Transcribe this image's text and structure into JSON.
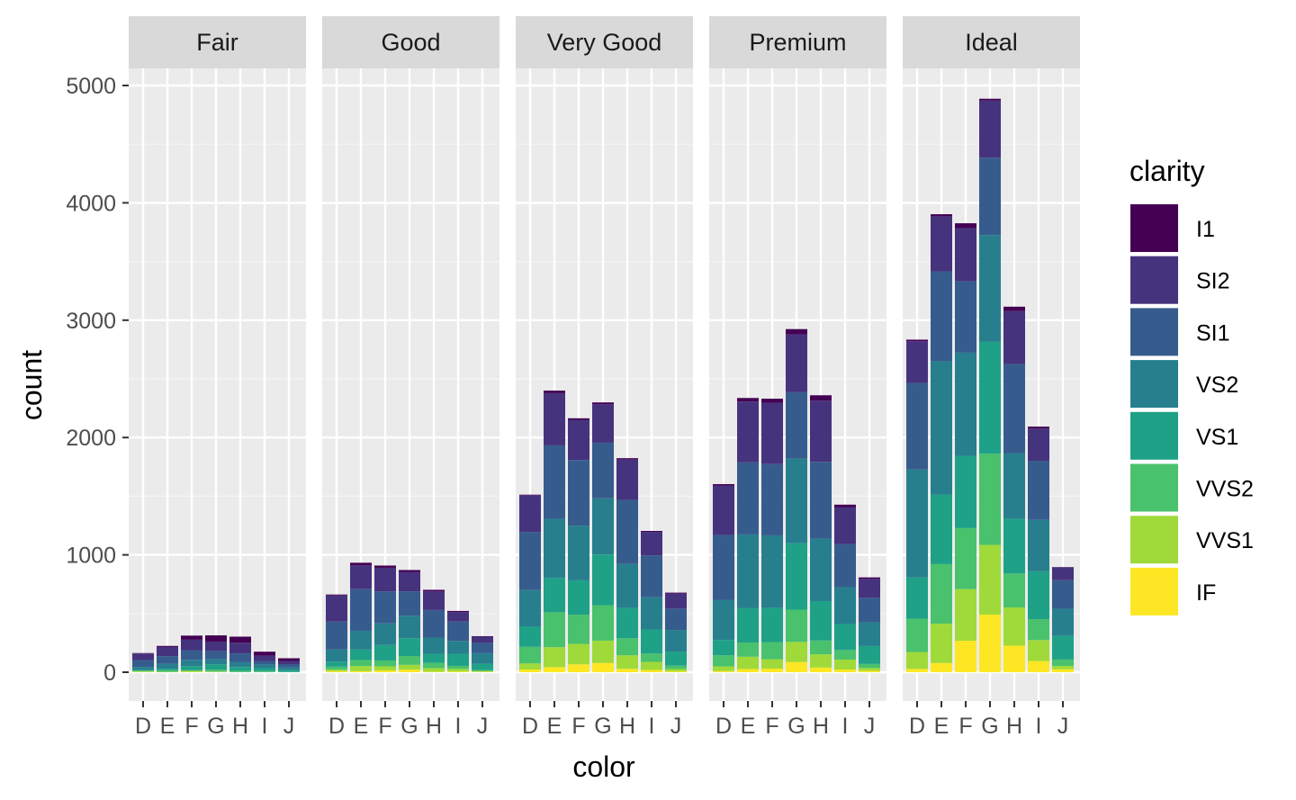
{
  "chart_data": {
    "type": "bar",
    "stacked": true,
    "facet_by": "cut",
    "xlabel": "color",
    "ylabel": "count",
    "ylim": [
      0,
      5300
    ],
    "y_ticks": [
      0,
      1000,
      2000,
      3000,
      4000,
      5000
    ],
    "grid": true,
    "legend_position": "right",
    "categories": [
      "D",
      "E",
      "F",
      "G",
      "H",
      "I",
      "J"
    ],
    "legend": {
      "title": "clarity",
      "items": [
        "I1",
        "SI2",
        "SI1",
        "VS2",
        "VS1",
        "VVS2",
        "VVS1",
        "IF"
      ],
      "colors": [
        "#440154",
        "#46337E",
        "#365C8D",
        "#277F8E",
        "#1FA187",
        "#4AC16D",
        "#9FDA3A",
        "#FDE725"
      ]
    },
    "stack_order": [
      "IF",
      "VVS1",
      "VVS2",
      "VS1",
      "VS2",
      "SI1",
      "SI2",
      "I1"
    ],
    "colors": {
      "I1": "#440154",
      "SI2": "#46337E",
      "SI1": "#365C8D",
      "VS2": "#277F8E",
      "VS1": "#1FA187",
      "VVS2": "#4AC16D",
      "VVS1": "#9FDA3A",
      "IF": "#FDE725"
    },
    "panels": [
      {
        "name": "Fair",
        "series": [
          {
            "name": "I1",
            "values": [
              4,
              9,
              35,
              53,
              52,
              34,
              23
            ]
          },
          {
            "name": "SI2",
            "values": [
              56,
              78,
              89,
              80,
              91,
              45,
              27
            ]
          },
          {
            "name": "SI1",
            "values": [
              58,
              65,
              83,
              69,
              75,
              30,
              28
            ]
          },
          {
            "name": "VS2",
            "values": [
              25,
              42,
              53,
              45,
              41,
              32,
              23
            ]
          },
          {
            "name": "VS1",
            "values": [
              5,
              14,
              33,
              45,
              32,
              25,
              16
            ]
          },
          {
            "name": "VVS2",
            "values": [
              9,
              13,
              10,
              17,
              11,
              8,
              1
            ]
          },
          {
            "name": "VVS1",
            "values": [
              3,
              3,
              5,
              3,
              1,
              1,
              1
            ]
          },
          {
            "name": "IF",
            "values": [
              3,
              0,
              4,
              2,
              0,
              0,
              0
            ]
          }
        ]
      },
      {
        "name": "Good",
        "series": [
          {
            "name": "I1",
            "values": [
              8,
              23,
              19,
              19,
              14,
              9,
              4
            ]
          },
          {
            "name": "SI2",
            "values": [
              223,
              202,
              201,
              163,
              158,
              81,
              53
            ]
          },
          {
            "name": "SI1",
            "values": [
              237,
              355,
              273,
              207,
              235,
              165,
              88
            ]
          },
          {
            "name": "VS2",
            "values": [
              104,
              160,
              184,
              192,
              138,
              110,
              90
            ]
          },
          {
            "name": "VS1",
            "values": [
              43,
              89,
              132,
              152,
              77,
              103,
              52
            ]
          },
          {
            "name": "VVS2",
            "values": [
              25,
              52,
              50,
              75,
              45,
              26,
              13
            ]
          },
          {
            "name": "VVS1",
            "values": [
              13,
              43,
              35,
              41,
              31,
              22,
              1
            ]
          },
          {
            "name": "IF",
            "values": [
              9,
              9,
              15,
              22,
              4,
              6,
              6
            ]
          }
        ]
      },
      {
        "name": "Very Good",
        "series": [
          {
            "name": "I1",
            "values": [
              5,
              22,
              13,
              16,
              12,
              8,
              8
            ]
          },
          {
            "name": "SI2",
            "values": [
              314,
              445,
              343,
              327,
              343,
              200,
              128
            ]
          },
          {
            "name": "SI1",
            "values": [
              494,
              626,
              559,
              474,
              547,
              358,
              182
            ]
          },
          {
            "name": "VS2",
            "values": [
              309,
              503,
              466,
              479,
              376,
              274,
              184
            ]
          },
          {
            "name": "VS1",
            "values": [
              175,
              293,
              293,
              432,
              257,
              205,
              120
            ]
          },
          {
            "name": "VVS2",
            "values": [
              141,
              298,
              249,
              302,
              145,
              71,
              29
            ]
          },
          {
            "name": "VVS1",
            "values": [
              52,
              170,
              174,
              190,
              115,
              69,
              19
            ]
          },
          {
            "name": "IF",
            "values": [
              23,
              43,
              67,
              79,
              29,
              19,
              8
            ]
          }
        ]
      },
      {
        "name": "Premium",
        "series": [
          {
            "name": "I1",
            "values": [
              12,
              30,
              34,
              46,
              46,
              24,
              13
            ]
          },
          {
            "name": "SI2",
            "values": [
              421,
              519,
              523,
              492,
              521,
              312,
              161
            ]
          },
          {
            "name": "SI1",
            "values": [
              556,
              614,
              608,
              566,
              655,
              367,
              209
            ]
          },
          {
            "name": "VS2",
            "values": [
              339,
              629,
              619,
              721,
              532,
              315,
              202
            ]
          },
          {
            "name": "VS1",
            "values": [
              131,
              292,
              290,
              566,
              336,
              221,
              153
            ]
          },
          {
            "name": "VVS2",
            "values": [
              94,
              121,
              146,
              275,
              118,
              82,
              34
            ]
          },
          {
            "name": "VVS1",
            "values": [
              40,
              105,
              80,
              171,
              112,
              84,
              24
            ]
          },
          {
            "name": "IF",
            "values": [
              10,
              27,
              31,
              87,
              40,
              23,
              12
            ]
          }
        ]
      },
      {
        "name": "Ideal",
        "series": [
          {
            "name": "I1",
            "values": [
              13,
              18,
              42,
              16,
              38,
              17,
              2
            ]
          },
          {
            "name": "SI2",
            "values": [
              356,
              469,
              453,
              486,
              450,
              274,
              110
            ]
          },
          {
            "name": "SI1",
            "values": [
              738,
              766,
              608,
              660,
              763,
              504,
              243
            ]
          },
          {
            "name": "VS2",
            "values": [
              920,
              1136,
              879,
              910,
              556,
              438,
              232
            ]
          },
          {
            "name": "VS1",
            "values": [
              351,
              593,
              616,
              953,
              467,
              408,
              201
            ]
          },
          {
            "name": "VVS2",
            "values": [
              284,
              507,
              520,
              777,
              289,
              178,
              54
            ]
          },
          {
            "name": "VVS1",
            "values": [
              144,
              335,
              440,
              594,
              326,
              179,
              29
            ]
          },
          {
            "name": "IF",
            "values": [
              28,
              79,
              268,
              491,
              226,
              95,
              25
            ]
          }
        ]
      }
    ]
  }
}
